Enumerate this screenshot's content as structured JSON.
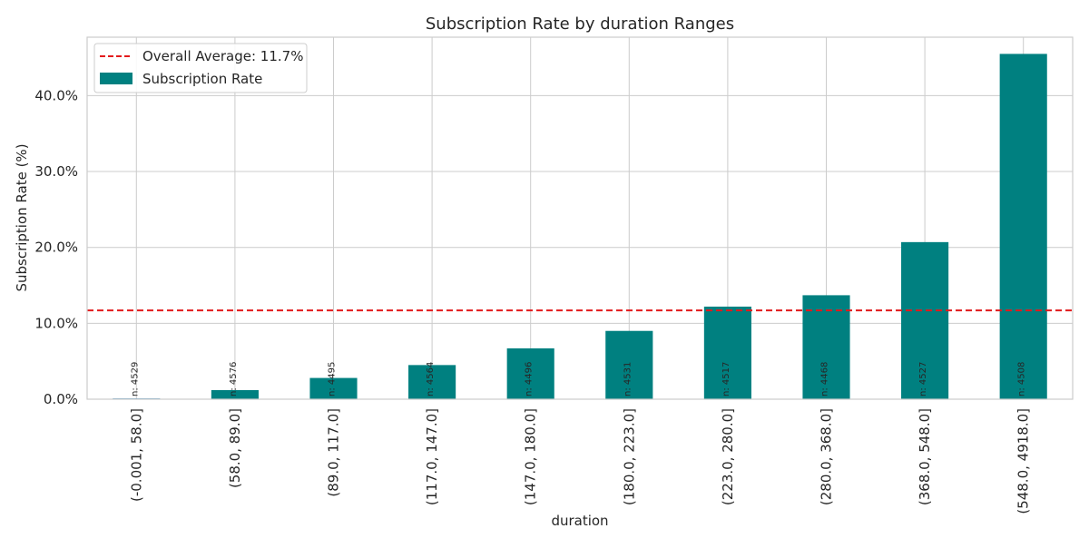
{
  "chart_data": {
    "type": "bar",
    "title": "Subscription Rate by duration Ranges",
    "xlabel": "duration",
    "ylabel": "Subscription Rate (%)",
    "ylim": [
      0,
      47.7
    ],
    "yticks": [
      0,
      10,
      20,
      30,
      40
    ],
    "ytick_labels": [
      "0.0%",
      "10.0%",
      "20.0%",
      "30.0%",
      "40.0%"
    ],
    "grid": true,
    "legend_position": "top-left",
    "categories": [
      "(-0.001, 58.0]",
      "(58.0, 89.0]",
      "(89.0, 117.0]",
      "(117.0, 147.0]",
      "(147.0, 180.0]",
      "(180.0, 223.0]",
      "(223.0, 280.0]",
      "(280.0, 368.0]",
      "(368.0, 548.0]",
      "(548.0, 4918.0]"
    ],
    "series": [
      {
        "name": "Subscription Rate",
        "values": [
          0.1,
          1.2,
          2.8,
          4.5,
          6.7,
          9.0,
          12.2,
          13.7,
          20.7,
          45.5
        ],
        "color": "#008080"
      }
    ],
    "counts": [
      "n: 4529",
      "n: 4576",
      "n: 4495",
      "n: 4564",
      "n: 4496",
      "n: 4531",
      "n: 4517",
      "n: 4468",
      "n: 4527",
      "n: 4508"
    ],
    "reference_line": {
      "label": "Overall Average: 11.7%",
      "value": 11.7,
      "color": "#e31a1c"
    },
    "first_bar_color": "#1f77b4"
  }
}
